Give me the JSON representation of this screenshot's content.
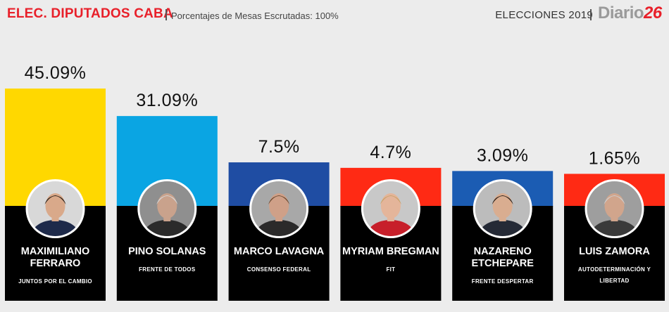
{
  "header": {
    "title": "ELEC. DIPUTADOS CABA",
    "subtitle": "Porcentajes de Mesas Escrutadas: 100%",
    "elections_label": "ELECCIONES",
    "elections_year": "2019",
    "logo_text": "Diario",
    "logo_number": "26"
  },
  "colors": {
    "title_red": "#e8202a",
    "background": "#ececec",
    "column_base": "#000000"
  },
  "chart_data": {
    "type": "bar",
    "title": "ELEC. DIPUTADOS CABA",
    "subtitle": "Porcentajes de Mesas Escrutadas: 100%",
    "ylim": [
      0,
      50
    ],
    "categories": [
      "MAXIMILIANO FERRARO",
      "PINO SOLANAS",
      "MARCO LAVAGNA",
      "MYRIAM BREGMAN",
      "NAZARENO ETCHEPARE",
      "LUIS ZAMORA"
    ],
    "values": [
      45.09,
      31.09,
      7.5,
      4.7,
      3.09,
      1.65
    ],
    "labels": [
      "45.09%",
      "31.09%",
      "7.5%",
      "4.7%",
      "3.09%",
      "1.65%"
    ],
    "candidates": [
      {
        "name_lines": [
          "MAXIMILIANO",
          "FERRARO"
        ],
        "party_lines": [
          "JUNTOS POR EL CAMBIO"
        ],
        "color": "#ffd800",
        "photo_bg": "#d8d8d8",
        "suit": "#1e2a4a",
        "skin": "#d9a98a",
        "hair": "#2a2018"
      },
      {
        "name_lines": [
          "PINO SOLANAS"
        ],
        "party_lines": [
          "FRENTE DE TODOS"
        ],
        "color": "#0aa5e3",
        "photo_bg": "#8f8f8f",
        "suit": "#2b2b2b",
        "skin": "#c9a28c",
        "hair": "#d6d6d6"
      },
      {
        "name_lines": [
          "MARCO LAVAGNA"
        ],
        "party_lines": [
          "CONSENSO FEDERAL"
        ],
        "color": "#1f4da3",
        "photo_bg": "#a8a8a8",
        "suit": "#2b2a2a",
        "skin": "#cfa088",
        "hair": "#6b4a32"
      },
      {
        "name_lines": [
          "MYRIAM BREGMAN"
        ],
        "party_lines": [
          "FIT"
        ],
        "color": "#ff2a14",
        "photo_bg": "#c8c8c8",
        "suit": "#c71f2a",
        "skin": "#e4b59a",
        "hair": "#c9a26a"
      },
      {
        "name_lines": [
          "NAZARENO",
          "ETCHEPARE"
        ],
        "party_lines": [
          "FRENTE DESPERTAR"
        ],
        "color": "#1b5cb3",
        "photo_bg": "#bcbcbc",
        "suit": "#252a36",
        "skin": "#d9ad90",
        "hair": "#2a1f18"
      },
      {
        "name_lines": [
          "LUIS ZAMORA"
        ],
        "party_lines": [
          "AUTODETERMINACIÓN Y",
          "LIBERTAD"
        ],
        "color": "#ff2a14",
        "photo_bg": "#9e9e9e",
        "suit": "#3a3a3a",
        "skin": "#d1a58c",
        "hair": "#cfcfcf"
      }
    ]
  }
}
